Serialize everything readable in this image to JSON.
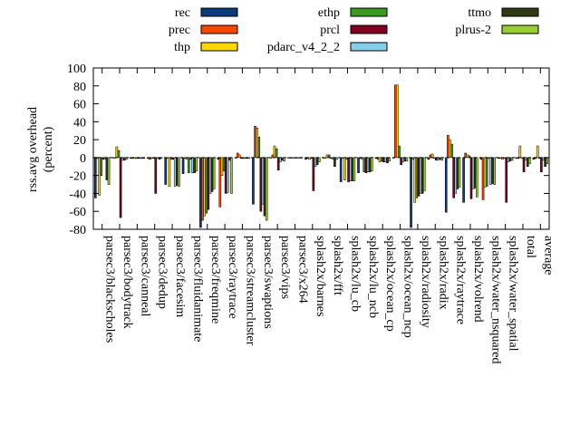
{
  "chart_data": {
    "type": "bar",
    "ylabel": "rss.avg overhead (percent)",
    "ylabel_lines": [
      "rss.avg overhead",
      "(percent)"
    ],
    "ylim": [
      -80,
      100
    ],
    "yticks": [
      "100",
      "80",
      "60",
      "40",
      "20",
      "0",
      "-20",
      "-40",
      "-60",
      "-80"
    ],
    "ytick_values": [
      100,
      80,
      60,
      40,
      20,
      0,
      -20,
      -40,
      -60,
      -80
    ],
    "legend_position": "top",
    "grid": false,
    "categories": [
      "parsec3/blackscholes",
      "parsec3/bodytrack",
      "parsec3/canneal",
      "parsec3/dedup",
      "parsec3/facesim",
      "parsec3/fluidanimate",
      "parsec3/freqmine",
      "parsec3/raytrace",
      "parsec3/streamcluster",
      "parsec3/swaptions",
      "parsec3/vips",
      "parsec3/x264",
      "splash2x/barnes",
      "splash2x/fft",
      "splash2x/lu_cb",
      "splash2x/lu_ncb",
      "splash2x/ocean_cp",
      "splash2x/ocean_ncp",
      "splash2x/radiosity",
      "splash2x/radix",
      "splash2x/raytrace",
      "splash2x/volrend",
      "splash2x/water_nsquared",
      "splash2x/water_spatial",
      "total",
      "average"
    ],
    "series": [
      {
        "name": "rec",
        "color": "#0b3b7a",
        "values": [
          -45,
          0,
          -1,
          -1,
          -30,
          -18,
          -78,
          -2,
          0,
          -52,
          0,
          0,
          -2,
          0,
          -27,
          -17,
          -1,
          0,
          -78,
          -2,
          -61,
          -50,
          -2,
          -1,
          -1,
          -2
        ]
      },
      {
        "name": "prec",
        "color": "#ff4500",
        "values": [
          -1,
          0,
          -1,
          -2,
          -1,
          -1,
          -70,
          -55,
          5,
          35,
          3,
          0,
          -1,
          0,
          -1,
          -1,
          -2,
          81,
          -2,
          3,
          25,
          5,
          -47,
          -1,
          -1,
          -1
        ]
      },
      {
        "name": "thp",
        "color": "#ffd700",
        "values": [
          -42,
          12,
          -1,
          -1,
          -32,
          -2,
          -65,
          -20,
          3,
          33,
          13,
          0,
          -2,
          3,
          -25,
          -2,
          -5,
          81,
          -50,
          4,
          20,
          3,
          -33,
          -2,
          13,
          13
        ]
      },
      {
        "name": "ethp",
        "color": "#3a9a1f",
        "values": [
          -20,
          8,
          -1,
          -1,
          -2,
          -17,
          -62,
          -15,
          -1,
          23,
          10,
          0,
          -1,
          3,
          -2,
          -16,
          -4,
          13,
          -45,
          -1,
          15,
          2,
          -32,
          -1,
          -1,
          -1
        ]
      },
      {
        "name": "prcl",
        "color": "#800020",
        "values": [
          -2,
          -67,
          -1,
          -40,
          -2,
          -2,
          -58,
          -40,
          -1,
          -60,
          -14,
          0,
          -37,
          -1,
          -27,
          -17,
          -5,
          -8,
          -43,
          -3,
          -45,
          -46,
          -1,
          -50,
          -16,
          -16
        ]
      },
      {
        "name": "pdarc_v4_2_2",
        "color": "#87ceeb",
        "values": [
          -2,
          -3,
          -1,
          -1,
          -32,
          -17,
          -40,
          -39,
          -1,
          -52,
          -5,
          0,
          -10,
          -2,
          -26,
          -16,
          -5,
          -5,
          -40,
          -3,
          -40,
          -35,
          -30,
          -5,
          -3,
          -3
        ]
      },
      {
        "name": "ttmo",
        "color": "#2e3a12",
        "values": [
          -25,
          -3,
          -1,
          -2,
          -31,
          -17,
          -38,
          -3,
          -1,
          -65,
          -3,
          0,
          -8,
          -10,
          -26,
          -16,
          -6,
          -4,
          -40,
          -2,
          -35,
          -34,
          -29,
          -4,
          -10,
          -10
        ]
      },
      {
        "name": "plrus-2",
        "color": "#9acd32",
        "values": [
          -30,
          -2,
          -1,
          -1,
          -32,
          -15,
          -35,
          -40,
          -1,
          -70,
          -4,
          0,
          -5,
          -2,
          -26,
          -15,
          -4,
          -4,
          -37,
          -3,
          -33,
          -44,
          -30,
          -3,
          -7,
          -7
        ]
      }
    ]
  }
}
